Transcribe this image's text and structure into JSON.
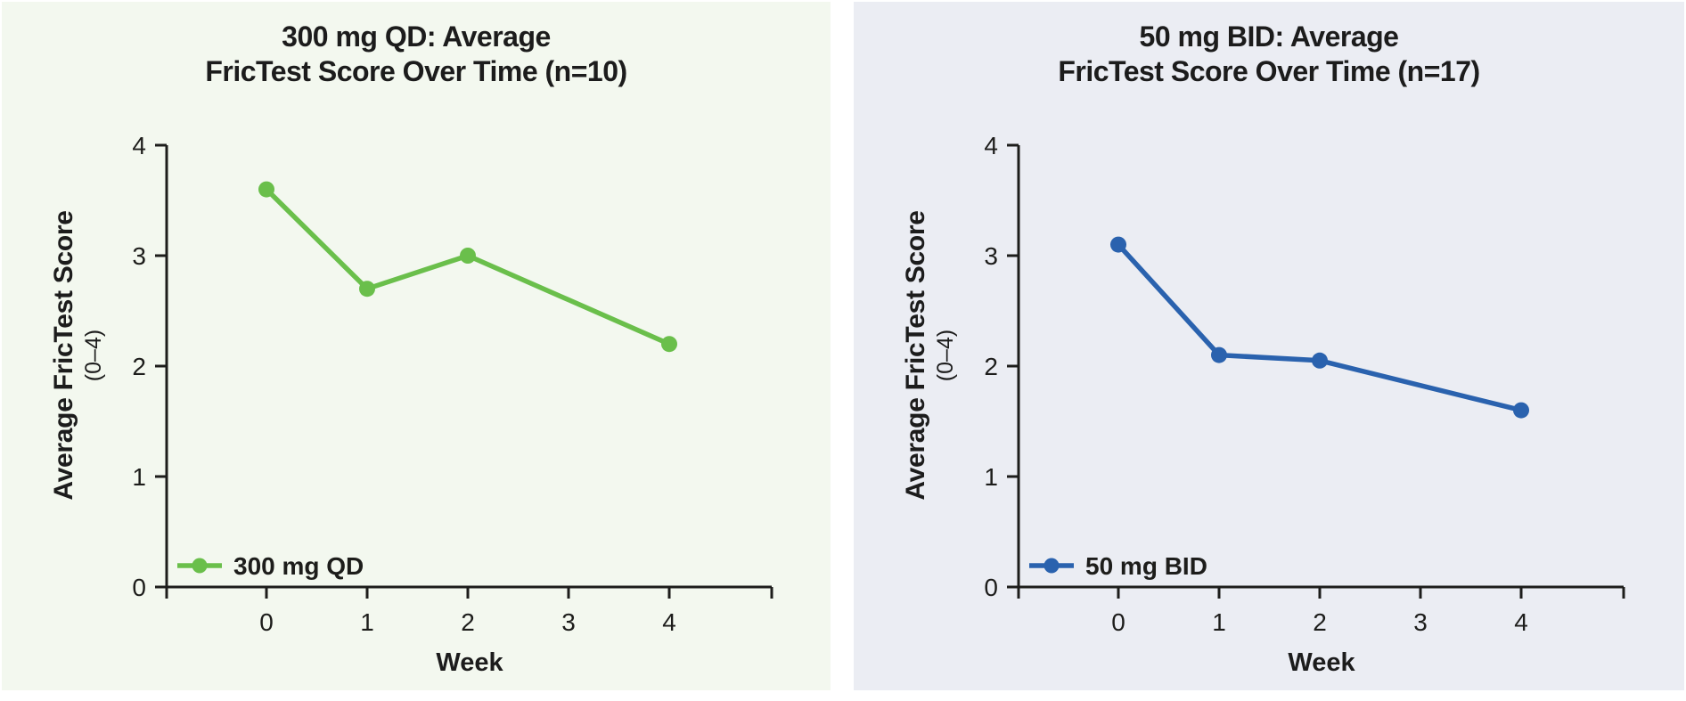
{
  "page": {
    "background": "#ffffff",
    "gutter_color": "#ffffff"
  },
  "chart_data": [
    {
      "type": "line",
      "title": "300 mg QD: Average FricTest Score Over Time (n=10)",
      "title_lines": [
        "300 mg QD: Average",
        "FricTest Score Over Time (n=10)"
      ],
      "xlabel": "Week",
      "ylabel": "Average FricTest Score",
      "ylabel_sub": "(0–4)",
      "x": [
        0,
        1,
        2,
        4
      ],
      "series": [
        {
          "name": "300 mg QD",
          "values": [
            3.6,
            2.7,
            3.0,
            2.2
          ],
          "color": "#6abf4b"
        }
      ],
      "xticks": [
        "0",
        "1",
        "2",
        "3",
        "4"
      ],
      "yticks": [
        "0",
        "1",
        "2",
        "3",
        "4"
      ],
      "xlim": [
        -1,
        5
      ],
      "ylim": [
        0,
        4
      ],
      "grid": false,
      "legend_position": "lower-left",
      "background": "#f3f8ef",
      "axis_color": "#1d1d1b"
    },
    {
      "type": "line",
      "title": "50 mg BID: Average FricTest Score Over Time (n=17)",
      "title_lines": [
        "50 mg BID: Average",
        "FricTest Score Over Time (n=17)"
      ],
      "xlabel": "Week",
      "ylabel": "Average FricTest Score",
      "ylabel_sub": "(0–4)",
      "x": [
        0,
        1,
        2,
        4
      ],
      "series": [
        {
          "name": "50 mg BID",
          "values": [
            3.1,
            2.1,
            2.05,
            1.6
          ],
          "color": "#2a62ae"
        }
      ],
      "xticks": [
        "0",
        "1",
        "2",
        "3",
        "4"
      ],
      "yticks": [
        "0",
        "1",
        "2",
        "3",
        "4"
      ],
      "xlim": [
        -1,
        5
      ],
      "ylim": [
        0,
        4
      ],
      "grid": false,
      "legend_position": "lower-left",
      "background": "#ebedf3",
      "axis_color": "#1d1d1b"
    }
  ]
}
